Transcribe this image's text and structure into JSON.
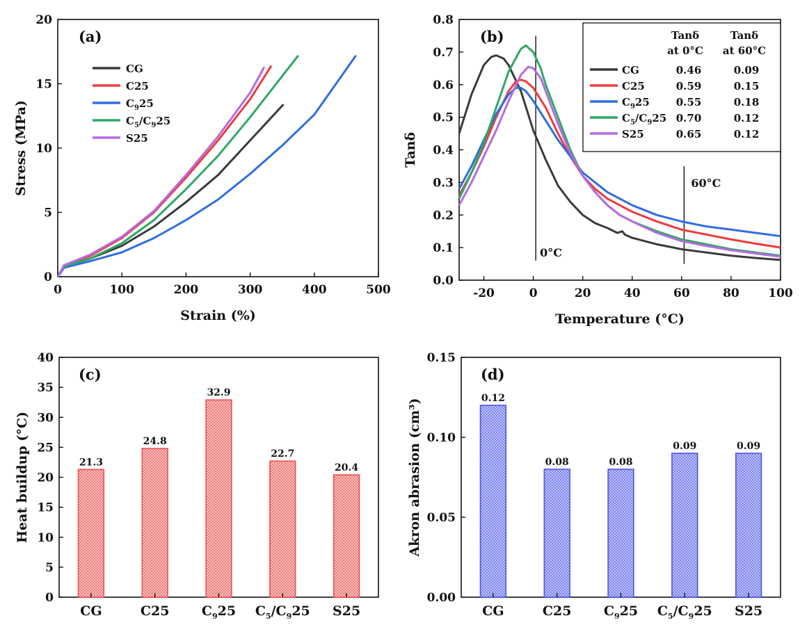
{
  "chart_data": [
    {
      "type": "line",
      "panel_label": "(a)",
      "xlabel": "Strain (%)",
      "ylabel": "Stress (MPa)",
      "xlim": [
        0,
        500
      ],
      "ylim": [
        0,
        20
      ],
      "xticks": [
        0,
        100,
        200,
        300,
        400,
        500
      ],
      "yticks": [
        0,
        5,
        10,
        15,
        20
      ],
      "legend_position": "top-left",
      "series": [
        {
          "name": "CG",
          "legend_html": "CG",
          "color": "#3a3a3a",
          "x": [
            0,
            10,
            50,
            100,
            150,
            200,
            250,
            300,
            352
          ],
          "y": [
            0,
            0.8,
            1.4,
            2.4,
            3.9,
            5.8,
            7.9,
            10.6,
            13.4
          ]
        },
        {
          "name": "C25",
          "legend_html": "C25",
          "color": "#ef3b3b",
          "x": [
            0,
            10,
            50,
            100,
            150,
            200,
            250,
            300,
            333
          ],
          "y": [
            0,
            0.9,
            1.6,
            3.0,
            5.0,
            7.7,
            10.6,
            13.8,
            16.4
          ]
        },
        {
          "name": "C9 25",
          "legend_html": "C<tspan font-size='10' dy='4'>9</tspan><tspan dy='-4'>25</tspan>",
          "color": "#2f6de0",
          "x": [
            0,
            10,
            50,
            100,
            150,
            200,
            250,
            300,
            350,
            400,
            465
          ],
          "y": [
            0,
            0.7,
            1.2,
            1.9,
            3.0,
            4.4,
            6.0,
            8.0,
            10.2,
            12.6,
            17.2
          ]
        },
        {
          "name": "C5/C9 25",
          "legend_html": "C<tspan font-size='10' dy='4'>5</tspan><tspan dy='-4'>/C</tspan><tspan font-size='10' dy='4'>9</tspan><tspan dy='-4'>25</tspan>",
          "color": "#2ea866",
          "x": [
            0,
            10,
            50,
            100,
            150,
            200,
            250,
            300,
            350,
            375
          ],
          "y": [
            0,
            0.8,
            1.4,
            2.6,
            4.4,
            6.8,
            9.4,
            12.4,
            15.6,
            17.2
          ]
        },
        {
          "name": "S25",
          "legend_html": "S25",
          "color": "#b46ae0",
          "x": [
            0,
            10,
            50,
            100,
            150,
            200,
            250,
            300,
            322
          ],
          "y": [
            0,
            0.9,
            1.7,
            3.1,
            5.1,
            7.9,
            10.9,
            14.3,
            16.3
          ]
        }
      ]
    },
    {
      "type": "line",
      "panel_label": "(b)",
      "xlabel": "Temperature (°C)",
      "ylabel": "Tanδ",
      "xlim": [
        -30,
        100
      ],
      "ylim": [
        0,
        0.8
      ],
      "xticks": [
        -20,
        0,
        20,
        40,
        60,
        80,
        100
      ],
      "yticks": [
        0.0,
        0.1,
        0.2,
        0.3,
        0.4,
        0.5,
        0.6,
        0.7,
        0.8
      ],
      "ytick_labels": [
        "0.0",
        "0.1",
        "0.2",
        "0.3",
        "0.4",
        "0.5",
        "0.6",
        "0.7",
        "0.8"
      ],
      "vlines": [
        {
          "x": 1,
          "label": "0°C",
          "y_from": 0.06,
          "y_to": 0.75
        },
        {
          "x": 61,
          "label": "60°C",
          "y_from": 0.05,
          "y_to": 0.35
        }
      ],
      "legend_position": "top-right",
      "legend_header": [
        "Tanδ",
        "at 0°C",
        "Tanδ",
        "at 60°C"
      ],
      "series": [
        {
          "name": "CG",
          "legend_html": "CG",
          "color": "#3a3a3a",
          "tan_0C": "0.46",
          "tan_60C": "0.09",
          "x": [
            -30,
            -25,
            -20,
            -17,
            -15,
            -12,
            -10,
            -5,
            0,
            5,
            10,
            15,
            20,
            25,
            30,
            34,
            36,
            37,
            40,
            50,
            60,
            70,
            80,
            90,
            100
          ],
          "y": [
            0.45,
            0.57,
            0.66,
            0.685,
            0.69,
            0.68,
            0.66,
            0.58,
            0.46,
            0.37,
            0.29,
            0.24,
            0.2,
            0.175,
            0.16,
            0.145,
            0.15,
            0.14,
            0.13,
            0.11,
            0.095,
            0.085,
            0.075,
            0.068,
            0.062
          ]
        },
        {
          "name": "C25",
          "legend_html": "C25",
          "color": "#ef3b3b",
          "tan_0C": "0.59",
          "tan_60C": "0.15",
          "x": [
            -30,
            -25,
            -20,
            -15,
            -10,
            -7,
            -5,
            -3,
            0,
            5,
            10,
            15,
            20,
            25,
            30,
            40,
            50,
            60,
            70,
            80,
            90,
            100
          ],
          "y": [
            0.26,
            0.33,
            0.41,
            0.5,
            0.58,
            0.61,
            0.615,
            0.61,
            0.59,
            0.53,
            0.45,
            0.38,
            0.32,
            0.28,
            0.25,
            0.21,
            0.18,
            0.155,
            0.14,
            0.125,
            0.112,
            0.1
          ]
        },
        {
          "name": "C9 25",
          "legend_html": "C<tspan font-size='10' dy='4'>9</tspan><tspan dy='-4'>25</tspan>",
          "color": "#2f6de0",
          "tan_0C": "0.55",
          "tan_60C": "0.18",
          "x": [
            -30,
            -25,
            -20,
            -15,
            -10,
            -7,
            -5,
            -3,
            0,
            5,
            10,
            15,
            20,
            25,
            30,
            40,
            50,
            60,
            70,
            80,
            90,
            100
          ],
          "y": [
            0.28,
            0.35,
            0.43,
            0.51,
            0.57,
            0.59,
            0.59,
            0.58,
            0.55,
            0.49,
            0.43,
            0.38,
            0.33,
            0.3,
            0.27,
            0.23,
            0.2,
            0.18,
            0.165,
            0.155,
            0.145,
            0.135
          ]
        },
        {
          "name": "C5/C9 25",
          "legend_html": "C<tspan font-size='10' dy='4'>5</tspan><tspan dy='-4'>/C</tspan><tspan font-size='10' dy='4'>9</tspan><tspan dy='-4'>25</tspan>",
          "color": "#2ea866",
          "tan_0C": "0.70",
          "tan_60C": "0.12",
          "x": [
            -30,
            -25,
            -20,
            -15,
            -10,
            -5,
            -3,
            0,
            3,
            5,
            10,
            15,
            20,
            25,
            30,
            35,
            40,
            50,
            60,
            70,
            80,
            90,
            100
          ],
          "y": [
            0.25,
            0.33,
            0.42,
            0.53,
            0.64,
            0.71,
            0.72,
            0.7,
            0.65,
            0.6,
            0.5,
            0.4,
            0.32,
            0.27,
            0.23,
            0.2,
            0.18,
            0.15,
            0.125,
            0.11,
            0.095,
            0.085,
            0.075
          ]
        },
        {
          "name": "S25",
          "legend_html": "S25",
          "color": "#b46ae0",
          "tan_0C": "0.65",
          "tan_60C": "0.12",
          "x": [
            -30,
            -25,
            -20,
            -15,
            -10,
            -5,
            -2,
            0,
            3,
            5,
            10,
            15,
            20,
            25,
            30,
            35,
            40,
            50,
            60,
            70,
            80,
            90,
            100
          ],
          "y": [
            0.23,
            0.3,
            0.38,
            0.46,
            0.55,
            0.63,
            0.655,
            0.65,
            0.62,
            0.58,
            0.48,
            0.39,
            0.32,
            0.27,
            0.23,
            0.2,
            0.18,
            0.145,
            0.12,
            0.105,
            0.092,
            0.082,
            0.072
          ]
        }
      ]
    },
    {
      "type": "bar",
      "panel_label": "(c)",
      "ylabel": "Heat buildup (°C)",
      "categories": [
        "CG",
        "C25",
        "C9 25",
        "C5/C9 25",
        "S25"
      ],
      "category_html": [
        "CG",
        "C25",
        "C<tspan font-size='11' dy='5'>9</tspan><tspan dy='-5'>25</tspan>",
        "C<tspan font-size='11' dy='5'>5</tspan><tspan dy='-5'>/C</tspan><tspan font-size='11' dy='5'>9</tspan><tspan dy='-5'>25</tspan>",
        "S25"
      ],
      "values": [
        21.3,
        24.8,
        32.9,
        22.7,
        20.4
      ],
      "value_labels": [
        "21.3",
        "24.8",
        "32.9",
        "22.7",
        "20.4"
      ],
      "ylim": [
        0,
        40
      ],
      "yticks": [
        0,
        5,
        10,
        15,
        20,
        25,
        30,
        35,
        40
      ],
      "color": "#ef4f4f",
      "fill": "#f7b5b5"
    },
    {
      "type": "bar",
      "panel_label": "(d)",
      "ylabel": "Akron abrasion (cm³)",
      "categories": [
        "CG",
        "C25",
        "C9 25",
        "C5/C9 25",
        "S25"
      ],
      "category_html": [
        "CG",
        "C25",
        "C<tspan font-size='11' dy='5'>9</tspan><tspan dy='-5'>25</tspan>",
        "C<tspan font-size='11' dy='5'>5</tspan><tspan dy='-5'>/C</tspan><tspan font-size='11' dy='5'>9</tspan><tspan dy='-5'>25</tspan>",
        "S25"
      ],
      "values": [
        0.12,
        0.08,
        0.08,
        0.09,
        0.09
      ],
      "value_labels": [
        "0.12",
        "0.08",
        "0.08",
        "0.09",
        "0.09"
      ],
      "ylim": [
        0,
        0.15
      ],
      "yticks": [
        0.0,
        0.05,
        0.1,
        0.15
      ],
      "ytick_labels": [
        "0.00",
        "0.05",
        "0.10",
        "0.15"
      ],
      "color": "#4a55e6",
      "fill": "#b5b9f7"
    }
  ]
}
